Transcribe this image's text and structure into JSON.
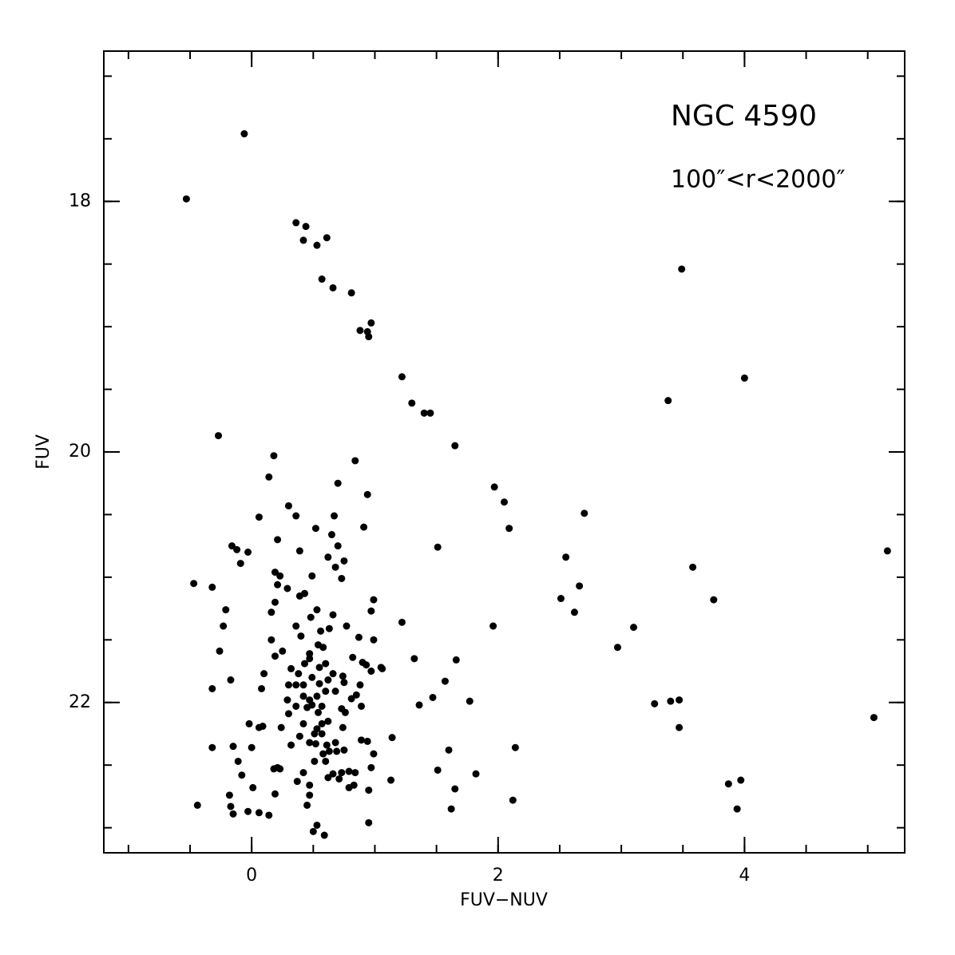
{
  "chart_data": {
    "type": "scatter",
    "xlabel": "FUV−NUV",
    "ylabel": "FUV",
    "annotations": [
      "NGC 4590",
      "100″<r<2000″"
    ],
    "color": "#000000",
    "xlim": [
      -1.2,
      5.3
    ],
    "ylim": [
      23.2,
      16.8
    ],
    "xticks": [
      0,
      2,
      4
    ],
    "yticks": [
      18,
      20,
      22
    ],
    "xminorticks": [
      -1,
      -0.5,
      0,
      0.5,
      1,
      1.5,
      2,
      2.5,
      3,
      3.5,
      4,
      4.5,
      5
    ],
    "yminorticks": [
      17,
      17.5,
      18,
      18.5,
      19,
      19.5,
      20,
      20.5,
      21,
      21.5,
      22,
      22.5,
      23
    ],
    "x": [
      -0.06,
      -0.53,
      0.36,
      0.44,
      0.42,
      0.53,
      0.61,
      0.57,
      0.66,
      0.81,
      0.88,
      0.94,
      0.97,
      0.95,
      1.22,
      1.3,
      1.4,
      1.45,
      1.65,
      3.49,
      4.0,
      3.38,
      -0.27,
      0.18,
      0.84,
      0.14,
      0.7,
      1.97,
      2.05,
      0.94,
      0.3,
      0.36,
      0.67,
      0.06,
      2.7,
      2.09,
      0.91,
      0.52,
      0.21,
      0.65,
      0.7,
      -0.16,
      -0.12,
      -0.03,
      0.39,
      1.51,
      5.16,
      0.62,
      0.75,
      -0.09,
      0.68,
      2.55,
      3.58,
      0.19,
      0.23,
      0.49,
      0.73,
      -0.47,
      -0.32,
      2.66,
      0.21,
      0.29,
      0.39,
      0.43,
      0.99,
      0.97,
      0.19,
      2.51,
      3.75,
      -0.21,
      0.16,
      0.53,
      2.62,
      0.48,
      0.66,
      -0.23,
      0.36,
      0.56,
      0.63,
      0.77,
      1.22,
      1.96,
      3.1,
      0.4,
      0.16,
      0.87,
      0.99,
      0.54,
      0.58,
      2.97,
      -0.26,
      0.25,
      0.47,
      0.19,
      0.47,
      0.82,
      0.43,
      0.6,
      0.9,
      1.32,
      1.66,
      0.32,
      0.93,
      0.55,
      1.05,
      1.06,
      0.97,
      0.1,
      0.38,
      0.66,
      0.74,
      -0.17,
      0.49,
      0.62,
      1.57,
      0.3,
      0.36,
      0.42,
      0.55,
      0.75,
      0.88,
      -0.32,
      0.08,
      0.6,
      0.68,
      0.81,
      0.42,
      0.53,
      0.85,
      0.29,
      0.47,
      1.47,
      1.77,
      3.27,
      3.4,
      3.47,
      1.36,
      0.36,
      0.45,
      0.49,
      0.57,
      0.73,
      0.89,
      0.3,
      0.54,
      0.76,
      5.05,
      -0.02,
      0.62,
      0.06,
      0.09,
      0.42,
      0.57,
      0.74,
      0.24,
      0.53,
      3.47,
      0.51,
      0.57,
      0.39,
      1.14,
      0.89,
      0.94,
      0.47,
      0.52,
      0.68,
      0.32,
      0.61,
      -0.32,
      -0.15,
      0.0,
      1.6,
      2.14,
      0.58,
      0.63,
      0.69,
      0.75,
      0.99,
      -0.11,
      0.51,
      0.6,
      0.21,
      0.18,
      0.23,
      0.97,
      1.51,
      0.42,
      0.73,
      0.79,
      0.84,
      -0.08,
      0.62,
      0.66,
      0.71,
      1.82,
      0.37,
      1.13,
      0.47,
      0.83,
      0.79,
      0.01,
      3.87,
      3.97,
      1.65,
      0.95,
      0.19,
      -0.18,
      0.47,
      2.12,
      -0.44,
      -0.17,
      0.45,
      -0.15,
      -0.03,
      0.06,
      0.14,
      1.62,
      3.94,
      0.95,
      0.53,
      0.5,
      0.59
    ],
    "values": [
      17.46,
      17.98,
      18.17,
      18.2,
      18.31,
      18.35,
      18.29,
      18.62,
      18.69,
      18.73,
      19.03,
      19.04,
      18.97,
      19.08,
      19.4,
      19.61,
      19.69,
      19.69,
      19.95,
      18.54,
      19.41,
      19.59,
      19.87,
      20.03,
      20.07,
      20.2,
      20.25,
      20.28,
      20.4,
      20.34,
      20.43,
      20.51,
      20.51,
      20.52,
      20.49,
      20.61,
      20.6,
      20.61,
      20.7,
      20.66,
      20.75,
      20.75,
      20.78,
      20.8,
      20.79,
      20.76,
      20.79,
      20.84,
      20.87,
      20.89,
      20.92,
      20.84,
      20.92,
      20.96,
      20.99,
      20.99,
      21.01,
      21.05,
      21.08,
      21.07,
      21.06,
      21.09,
      21.15,
      21.13,
      21.18,
      21.27,
      21.2,
      21.17,
      21.18,
      21.26,
      21.28,
      21.26,
      21.28,
      21.32,
      21.3,
      21.39,
      21.39,
      21.43,
      21.41,
      21.39,
      21.36,
      21.39,
      21.4,
      21.47,
      21.5,
      21.48,
      21.5,
      21.54,
      21.56,
      21.56,
      21.59,
      21.59,
      21.61,
      21.63,
      21.65,
      21.64,
      21.69,
      21.69,
      21.68,
      21.65,
      21.66,
      21.73,
      21.7,
      21.72,
      21.72,
      21.73,
      21.75,
      21.77,
      21.77,
      21.77,
      21.79,
      21.82,
      21.8,
      21.82,
      21.83,
      21.86,
      21.86,
      21.86,
      21.85,
      21.84,
      21.86,
      21.89,
      21.89,
      21.91,
      21.91,
      21.97,
      21.95,
      21.95,
      21.94,
      21.98,
      21.98,
      21.96,
      21.99,
      22.01,
      21.99,
      21.98,
      22.02,
      22.03,
      22.04,
      22.02,
      22.03,
      22.05,
      22.03,
      22.09,
      22.08,
      22.08,
      22.12,
      22.17,
      22.15,
      22.2,
      22.19,
      22.17,
      22.17,
      22.2,
      22.2,
      22.21,
      22.2,
      22.25,
      22.25,
      22.27,
      22.28,
      22.3,
      22.31,
      22.32,
      22.33,
      22.32,
      22.34,
      22.34,
      22.36,
      22.35,
      22.36,
      22.38,
      22.36,
      22.41,
      22.39,
      22.39,
      22.38,
      22.41,
      22.47,
      22.47,
      22.47,
      22.52,
      22.53,
      22.53,
      22.52,
      22.54,
      22.56,
      22.56,
      22.55,
      22.56,
      22.58,
      22.6,
      22.57,
      22.61,
      22.57,
      22.63,
      22.62,
      22.66,
      22.66,
      22.68,
      22.68,
      22.65,
      22.62,
      22.69,
      22.7,
      22.73,
      22.74,
      22.74,
      22.78,
      22.82,
      22.83,
      22.82,
      22.89,
      22.87,
      22.88,
      22.9,
      22.85,
      22.85,
      22.96,
      22.98,
      23.03,
      23.06
    ]
  }
}
